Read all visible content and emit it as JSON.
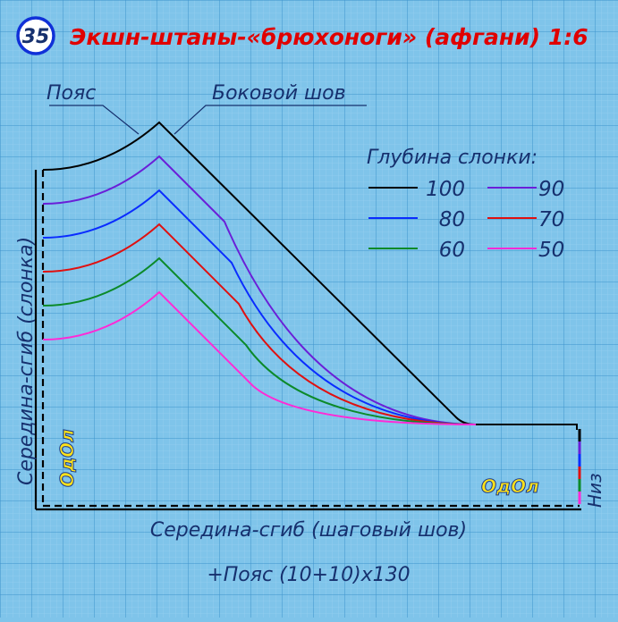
{
  "badge": {
    "number": "35"
  },
  "title": "Экшн-штаны-«брюхоноги» (афгани) 1:6",
  "labels": {
    "waist": "Пояс",
    "side_seam": "Боковой шов",
    "left_side": "Середина-сгиб (слонка)",
    "bottom_side": "Середина-сгиб (шаговый шов)",
    "hem": "Низ",
    "waistband_note": "+Пояс (10+10)x130",
    "watermark_left": "ОдОл",
    "watermark_right": "ОдОл"
  },
  "legend": {
    "title": "Глубина слонки:",
    "items": [
      {
        "label": "100",
        "color": "#000000"
      },
      {
        "label": "90",
        "color": "#6a1fd8"
      },
      {
        "label": "80",
        "color": "#0a2cff"
      },
      {
        "label": "70",
        "color": "#e01010"
      },
      {
        "label": "60",
        "color": "#0c8a2a"
      },
      {
        "label": "50",
        "color": "#ff2bd6"
      }
    ]
  },
  "colors": {
    "background": "#7fc4ea",
    "grid_fine": "#9fd3f0",
    "grid_major": "#3e93cc",
    "text": "#16306e",
    "title": "#e00000",
    "badge_ring": "#1030d8",
    "watermark_fill": "#ffe21a",
    "watermark_stroke": "#1a3a8a"
  }
}
